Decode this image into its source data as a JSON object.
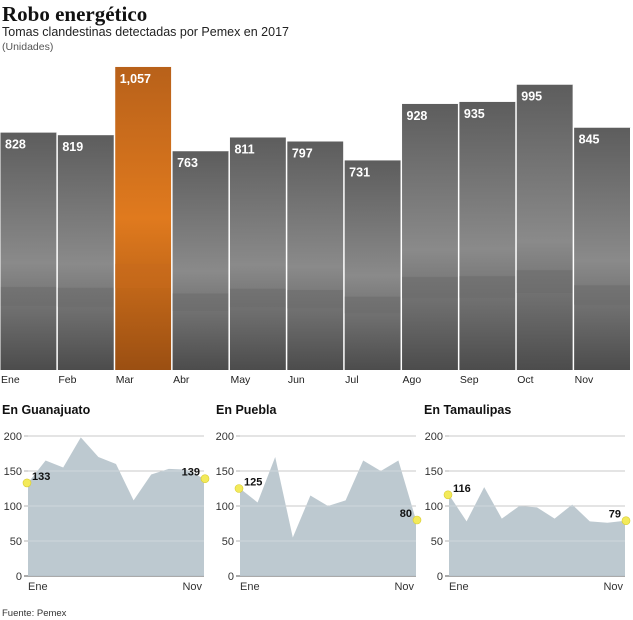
{
  "header": {
    "title": "Robo energético",
    "subtitle": "Tomas clandestinas detectadas por Pemex en 2017",
    "unit": "(Unidades)"
  },
  "source": "Fuente: Pemex",
  "colors": {
    "highlight": "#e07a1e",
    "area": "#b9c6cd",
    "marker": "#f3ea5a",
    "photo": "#6f6f6f"
  },
  "chart_data": [
    {
      "type": "bar",
      "title": "Robo energético",
      "subtitle": "Tomas clandestinas detectadas por Pemex en 2017",
      "categories": [
        "Ene",
        "Feb",
        "Mar",
        "Abr",
        "May",
        "Jun",
        "Jul",
        "Ago",
        "Sep",
        "Oct",
        "Nov"
      ],
      "values": [
        828,
        819,
        1057,
        763,
        811,
        797,
        731,
        928,
        935,
        995,
        845
      ],
      "labels": [
        "828",
        "819",
        "1,057",
        "763",
        "811",
        "797",
        "731",
        "928",
        "935",
        "995",
        "845"
      ],
      "highlight_index": 2
    },
    {
      "type": "area",
      "title": "En Guanajuato",
      "yticks": [
        0,
        50,
        100,
        150,
        200
      ],
      "ylim": [
        0,
        200
      ],
      "x_start_label": "Ene",
      "x_end_label": "Nov",
      "values": [
        133,
        165,
        155,
        198,
        170,
        160,
        108,
        145,
        153,
        152,
        139
      ],
      "start_label": "133",
      "end_label": "139"
    },
    {
      "type": "area",
      "title": "En Puebla",
      "yticks": [
        0,
        50,
        100,
        150,
        200
      ],
      "ylim": [
        0,
        200
      ],
      "x_start_label": "Ene",
      "x_end_label": "Nov",
      "values": [
        125,
        105,
        170,
        55,
        115,
        100,
        108,
        165,
        150,
        165,
        80
      ],
      "start_label": "125",
      "end_label": "80"
    },
    {
      "type": "area",
      "title": "En Tamaulipas",
      "yticks": [
        0,
        50,
        100,
        150,
        200
      ],
      "ylim": [
        0,
        200
      ],
      "x_start_label": "Ene",
      "x_end_label": "Nov",
      "values": [
        116,
        78,
        127,
        82,
        100,
        98,
        82,
        102,
        78,
        76,
        79
      ],
      "start_label": "116",
      "end_label": "79"
    }
  ]
}
